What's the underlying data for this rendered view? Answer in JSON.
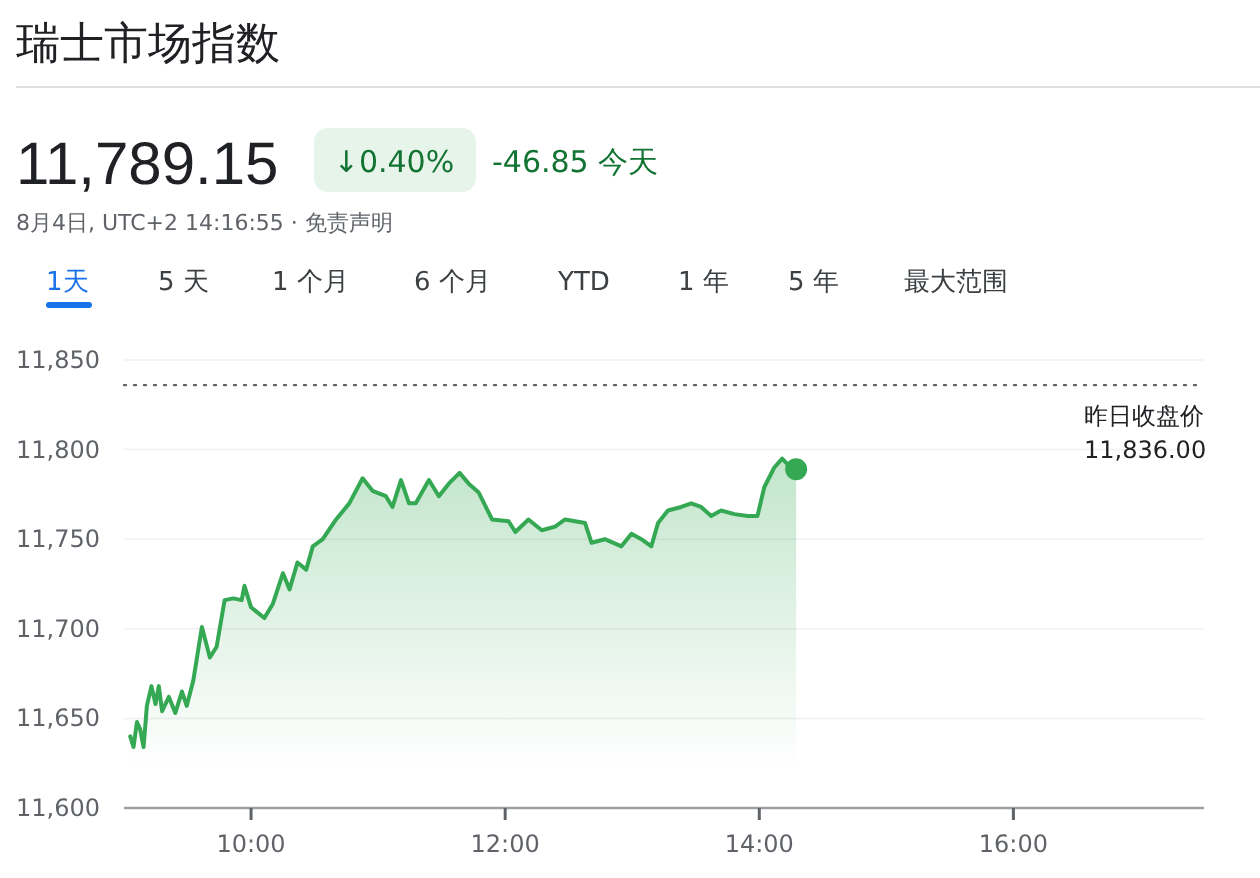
{
  "chart_data": {
    "type": "area",
    "title": "瑞士市场指数",
    "annotations": [
      "11,789.15",
      "↓0.40%",
      "-46.85 今天",
      "8月4日, UTC+2 14:16:55 · 免责声明",
      "1天",
      "5 天",
      "1 个月",
      "6 个月",
      "YTD",
      "1 年",
      "5 年",
      "最大范围"
    ],
    "xlim": [
      9,
      17.5
    ],
    "xticks": [
      {
        "value": 10,
        "label": "10:00"
      },
      {
        "value": 12,
        "label": "12:00"
      },
      {
        "value": 14,
        "label": "14:00"
      },
      {
        "value": 16,
        "label": "16:00"
      }
    ],
    "ylim": [
      11600,
      11850
    ],
    "yticks": [
      {
        "value": 11600,
        "label": "11,600"
      },
      {
        "value": 11650,
        "label": "11,650"
      },
      {
        "value": 11700,
        "label": "11,700"
      },
      {
        "value": 11750,
        "label": "11,750"
      },
      {
        "value": 11800,
        "label": "11,800"
      },
      {
        "value": 11850,
        "label": "11,850"
      }
    ],
    "grid": "y",
    "marker": "none",
    "line_style": "solid",
    "ref_lines": [
      {
        "axis": "y",
        "value": 11836,
        "label": "昨日收盘价 11,836.00",
        "line_style": "dotted",
        "color": "#5f6368"
      }
    ],
    "series": [
      {
        "color": "#34a853",
        "x": [
          9.049,
          9.075,
          9.102,
          9.127,
          9.154,
          9.18,
          9.216,
          9.248,
          9.274,
          9.3,
          9.353,
          9.404,
          9.456,
          9.494,
          9.545,
          9.613,
          9.676,
          9.729,
          9.792,
          9.859,
          9.926,
          9.948,
          10.0,
          10.052,
          10.105,
          10.172,
          10.251,
          10.303,
          10.365,
          10.434,
          10.486,
          10.564,
          10.669,
          10.773,
          10.878,
          10.956,
          11.061,
          11.113,
          11.18,
          11.243,
          11.296,
          11.4,
          11.478,
          11.556,
          11.641,
          11.713,
          11.792,
          11.897,
          12.027,
          12.08,
          12.183,
          12.288,
          12.393,
          12.472,
          12.629,
          12.68,
          12.785,
          12.915,
          12.994,
          13.072,
          13.15,
          13.203,
          13.281,
          13.386,
          13.464,
          13.542,
          13.621,
          13.699,
          13.804,
          13.908,
          13.986,
          14.039,
          14.118,
          14.18,
          14.248,
          14.29
        ],
        "values": [
          11640,
          11634,
          11648,
          11644,
          11634,
          11657,
          11668,
          11658,
          11668,
          11654,
          11662,
          11653,
          11665,
          11657,
          11671,
          11701,
          11684,
          11690,
          11716,
          11717,
          11716,
          11724,
          11712,
          11709,
          11706,
          11714,
          11731,
          11722,
          11737,
          11733,
          11746,
          11750,
          11761,
          11770,
          11784,
          11777,
          11774,
          11768,
          11783,
          11770,
          11770,
          11783,
          11774,
          11781,
          11787,
          11781,
          11776,
          11761,
          11760,
          11754,
          11761,
          11755,
          11757,
          11761,
          11759,
          11748,
          11750,
          11746,
          11753,
          11750,
          11746,
          11759,
          11766,
          11768,
          11770,
          11768,
          11763,
          11766,
          11764,
          11763,
          11763,
          11779,
          11790,
          11795,
          11790,
          11789
        ]
      },
      {
        "type": "scatter",
        "color": "#34a853",
        "marker": "circle",
        "x": [
          14.29
        ],
        "values": [
          11789
        ]
      }
    ]
  }
}
